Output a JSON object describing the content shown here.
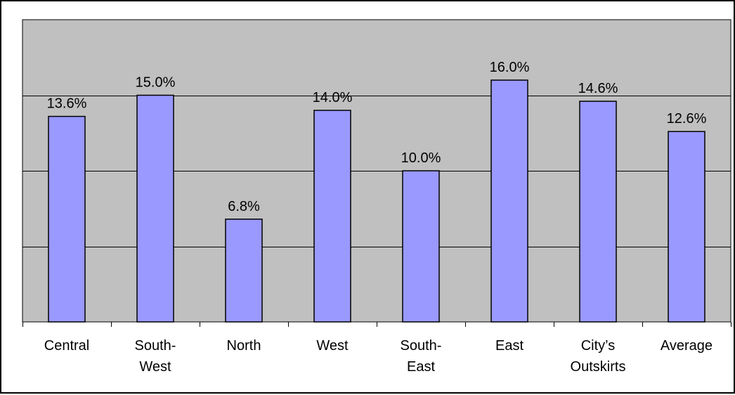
{
  "chart_data": {
    "type": "bar",
    "title": "",
    "xlabel": "",
    "ylabel": "",
    "categories": [
      [
        "Central"
      ],
      [
        "South-",
        "West"
      ],
      [
        "North"
      ],
      [
        "West"
      ],
      [
        "South-",
        "East"
      ],
      [
        "East"
      ],
      [
        "City’s",
        "Outskirts"
      ],
      [
        "Average"
      ]
    ],
    "values": [
      13.6,
      15.0,
      6.8,
      14.0,
      10.0,
      16.0,
      14.6,
      12.6
    ],
    "data_labels": [
      "13.6%",
      "15.0%",
      "6.8%",
      "14.0%",
      "10.0%",
      "16.0%",
      "14.6%",
      "12.6%"
    ],
    "ylim": [
      0,
      20
    ],
    "gridlines": [
      5,
      10,
      15
    ],
    "grid": true,
    "legend": "none",
    "colors": {
      "plot_background": "#c0c0c0",
      "bar_fill": "#9999ff",
      "bar_stroke": "#000000",
      "gridline": "#000000",
      "frame": "#000000"
    }
  }
}
